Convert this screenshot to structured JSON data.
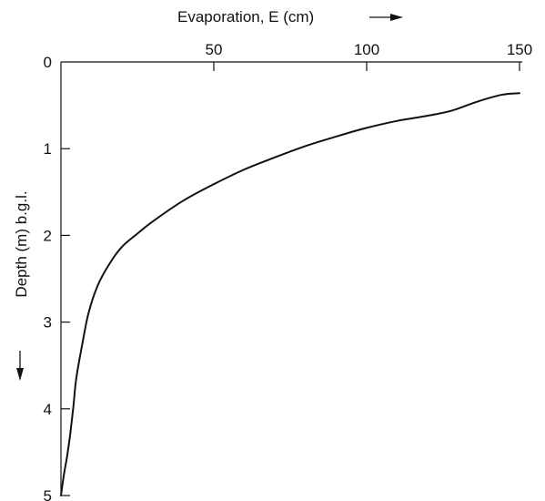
{
  "chart_data": {
    "type": "line",
    "xlabel": "Evaporation, E (cm)",
    "ylabel": "Depth (m) b.g.l.",
    "xlim": [
      0,
      150
    ],
    "ylim": [
      0,
      5
    ],
    "x_ticks": [
      50,
      100,
      150
    ],
    "y_ticks": [
      0,
      1,
      2,
      3,
      4,
      5
    ],
    "x_axis_position": "top",
    "y_inverted": true,
    "grid": false,
    "series": [
      {
        "x": [
          150,
          144,
          136,
          128,
          120,
          110,
          100,
          90,
          80,
          70,
          60,
          50,
          40,
          30,
          25,
          20,
          16,
          12,
          9,
          7,
          5,
          4,
          3,
          2,
          1,
          0
        ],
        "y": [
          0.36,
          0.38,
          0.46,
          0.56,
          0.62,
          0.68,
          0.76,
          0.86,
          0.97,
          1.1,
          1.24,
          1.41,
          1.6,
          1.84,
          1.98,
          2.13,
          2.32,
          2.58,
          2.9,
          3.25,
          3.65,
          4.0,
          4.3,
          4.55,
          4.75,
          5.0
        ]
      }
    ]
  }
}
